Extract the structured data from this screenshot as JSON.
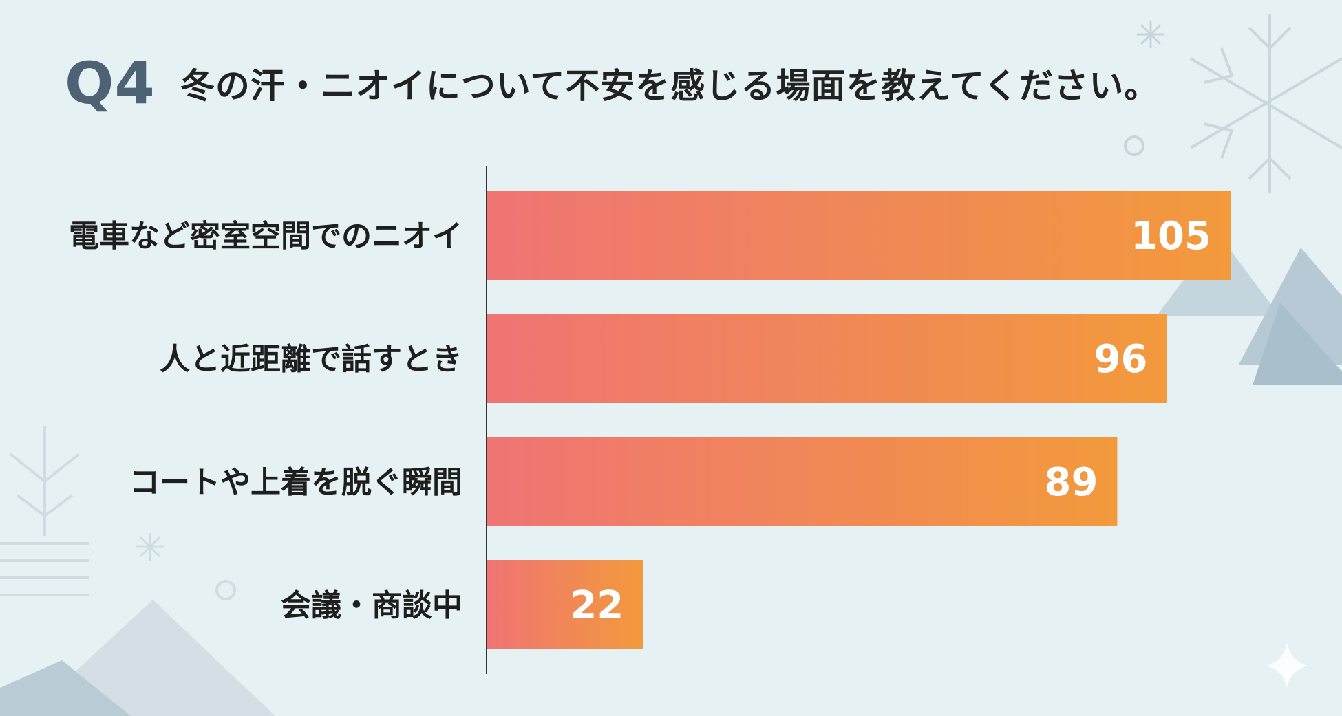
{
  "header": {
    "question_number": "Q4",
    "question_text": "冬の汗・ニオイについて不安を感じる場面を教えてください。"
  },
  "colors": {
    "bar_start": "#ef7474",
    "bar_end": "#f29a3c",
    "title_accent": "#4d6274",
    "background": "#e6f1f3"
  },
  "chart_data": {
    "type": "bar",
    "orientation": "horizontal",
    "categories": [
      "電車など密室空間でのニオイ",
      "人と近距離で話すとき",
      "コートや上着を脱ぐ瞬間",
      "会議・商談中"
    ],
    "values": [
      105,
      96,
      89,
      22
    ],
    "title": "",
    "xlabel": "",
    "ylabel": "",
    "grid": false
  }
}
